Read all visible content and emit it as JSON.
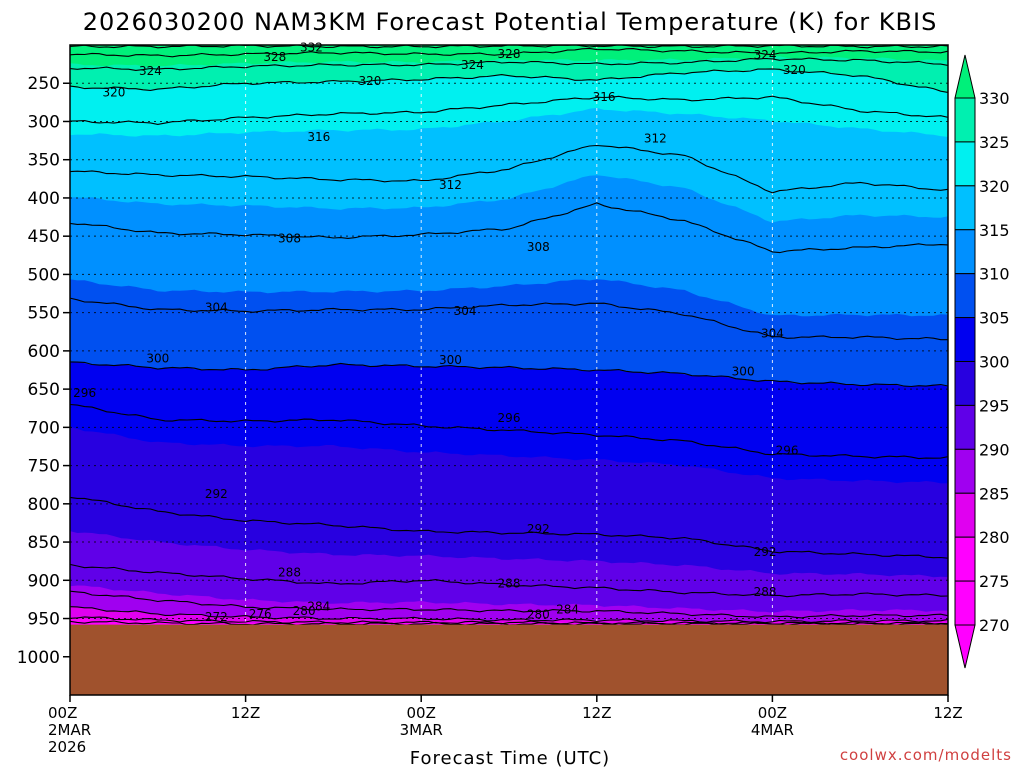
{
  "chart_data": {
    "type": "heatmap",
    "title": "2026030200 NAM3KM Forecast Potential Temperature (K) for KBIS",
    "xlabel": "Forecast Time (UTC)",
    "ylabel": "",
    "credit": "coolwx.com/modelts",
    "x_ticks": [
      {
        "label": "00Z",
        "sub1": "2MAR",
        "sub2": "2026",
        "hour": 0
      },
      {
        "label": "12Z",
        "sub1": "",
        "sub2": "",
        "hour": 12
      },
      {
        "label": "00Z",
        "sub1": "3MAR",
        "sub2": "",
        "hour": 24
      },
      {
        "label": "12Z",
        "sub1": "",
        "sub2": "",
        "hour": 36
      },
      {
        "label": "00Z",
        "sub1": "4MAR",
        "sub2": "",
        "hour": 48
      },
      {
        "label": "12Z",
        "sub1": "",
        "sub2": "",
        "hour": 60
      }
    ],
    "x_range_hours": [
      0,
      60
    ],
    "y_ticks": [
      "250",
      "300",
      "350",
      "400",
      "450",
      "500",
      "550",
      "600",
      "650",
      "700",
      "750",
      "800",
      "850",
      "900",
      "950",
      "1000"
    ],
    "y_range_hpa": [
      200,
      1050
    ],
    "surface_pressure_hpa": 958,
    "surface_color": "#a0522d",
    "colorbar": {
      "ticks": [
        "330",
        "325",
        "320",
        "315",
        "310",
        "305",
        "300",
        "295",
        "290",
        "285",
        "280",
        "275",
        "270"
      ],
      "bins": [
        {
          "range": [
            325,
            335
          ],
          "color": "#00f07a"
        },
        {
          "range": [
            320,
            325
          ],
          "color": "#00f0b0"
        },
        {
          "range": [
            315,
            320
          ],
          "color": "#00f0f0"
        },
        {
          "range": [
            310,
            315
          ],
          "color": "#00c0ff"
        },
        {
          "range": [
            305,
            310
          ],
          "color": "#0090ff"
        },
        {
          "range": [
            300,
            305
          ],
          "color": "#0050f0"
        },
        {
          "range": [
            295,
            300
          ],
          "color": "#0000f0"
        },
        {
          "range": [
            290,
            295
          ],
          "color": "#2800e0"
        },
        {
          "range": [
            285,
            290
          ],
          "color": "#6000e8"
        },
        {
          "range": [
            280,
            285
          ],
          "color": "#a000f0"
        },
        {
          "range": [
            275,
            280
          ],
          "color": "#e000f0"
        },
        {
          "range": [
            265,
            275
          ],
          "color": "#ff00ff"
        }
      ]
    },
    "isentrope_levels": [
      272,
      276,
      280,
      284,
      288,
      292,
      296,
      300,
      304,
      308,
      312,
      316,
      320,
      324,
      328,
      332
    ],
    "sample_hours": [
      0,
      6,
      12,
      18,
      24,
      30,
      36,
      42,
      48,
      54,
      60
    ],
    "isentrope_pressure_profiles": {
      "332": [
        202,
        202,
        201,
        202,
        202,
        201,
        201,
        202,
        201,
        202,
        202
      ],
      "328": [
        212,
        214,
        212,
        210,
        212,
        212,
        205,
        208,
        211,
        208,
        209
      ],
      "324": [
        230,
        232,
        228,
        226,
        226,
        222,
        225,
        223,
        218,
        220,
        225
      ],
      "320": [
        255,
        258,
        250,
        248,
        245,
        240,
        246,
        236,
        232,
        240,
        262
      ],
      "316": [
        300,
        302,
        295,
        290,
        288,
        278,
        268,
        272,
        268,
        286,
        295
      ],
      "312": [
        365,
        370,
        372,
        376,
        378,
        362,
        330,
        345,
        392,
        380,
        390
      ],
      "308": [
        432,
        446,
        448,
        452,
        448,
        440,
        408,
        430,
        470,
        465,
        460
      ],
      "304": [
        532,
        546,
        548,
        546,
        546,
        540,
        538,
        552,
        582,
        582,
        585
      ],
      "300": [
        615,
        622,
        625,
        618,
        620,
        622,
        625,
        630,
        640,
        644,
        646
      ],
      "296": [
        670,
        690,
        692,
        690,
        698,
        704,
        710,
        718,
        735,
        738,
        740
      ],
      "292": [
        790,
        810,
        822,
        828,
        836,
        838,
        840,
        845,
        862,
        866,
        870
      ],
      "288": [
        880,
        890,
        898,
        905,
        900,
        906,
        910,
        916,
        920,
        918,
        920
      ],
      "284": [
        915,
        926,
        935,
        938,
        938,
        940,
        940,
        944,
        948,
        946,
        946
      ],
      "280": [
        935,
        944,
        948,
        950,
        950,
        952,
        952,
        953,
        954,
        953,
        953
      ],
      "276": [
        948,
        952,
        954,
        955,
        955,
        955,
        956,
        956,
        956,
        956,
        956
      ],
      "272": [
        954,
        956,
        957,
        957,
        957,
        957,
        957,
        957,
        957,
        957,
        957
      ]
    },
    "contour_labels": [
      {
        "text": "332",
        "hour": 16.5,
        "p": 203
      },
      {
        "text": "328",
        "hour": 14,
        "p": 216
      },
      {
        "text": "328",
        "hour": 30,
        "p": 212
      },
      {
        "text": "324",
        "hour": 5.5,
        "p": 234
      },
      {
        "text": "324",
        "hour": 27.5,
        "p": 226
      },
      {
        "text": "324",
        "hour": 47.5,
        "p": 213
      },
      {
        "text": "320",
        "hour": 3,
        "p": 262
      },
      {
        "text": "320",
        "hour": 20.5,
        "p": 247
      },
      {
        "text": "320",
        "hour": 49.5,
        "p": 233
      },
      {
        "text": "316",
        "hour": 36.5,
        "p": 268
      },
      {
        "text": "316",
        "hour": 17,
        "p": 320
      },
      {
        "text": "312",
        "hour": 40,
        "p": 322
      },
      {
        "text": "312",
        "hour": 26,
        "p": 383
      },
      {
        "text": "308",
        "hour": 15,
        "p": 453
      },
      {
        "text": "308",
        "hour": 32,
        "p": 464
      },
      {
        "text": "304",
        "hour": 10,
        "p": 543
      },
      {
        "text": "304",
        "hour": 27,
        "p": 548
      },
      {
        "text": "304",
        "hour": 48,
        "p": 577
      },
      {
        "text": "300",
        "hour": 6,
        "p": 610
      },
      {
        "text": "300",
        "hour": 26,
        "p": 612
      },
      {
        "text": "300",
        "hour": 46,
        "p": 627
      },
      {
        "text": "296",
        "hour": 1,
        "p": 655
      },
      {
        "text": "296",
        "hour": 30,
        "p": 688
      },
      {
        "text": "296",
        "hour": 49,
        "p": 730
      },
      {
        "text": "292",
        "hour": 10,
        "p": 787
      },
      {
        "text": "292",
        "hour": 32,
        "p": 833
      },
      {
        "text": "292",
        "hour": 47.5,
        "p": 863
      },
      {
        "text": "288",
        "hour": 15,
        "p": 890
      },
      {
        "text": "288",
        "hour": 30,
        "p": 904
      },
      {
        "text": "288",
        "hour": 47.5,
        "p": 915
      },
      {
        "text": "284",
        "hour": 17,
        "p": 934
      },
      {
        "text": "284",
        "hour": 34,
        "p": 938
      },
      {
        "text": "280",
        "hour": 16,
        "p": 940
      },
      {
        "text": "280",
        "hour": 32,
        "p": 945
      },
      {
        "text": "276",
        "hour": 13,
        "p": 944
      },
      {
        "text": "272",
        "hour": 10,
        "p": 948
      }
    ]
  }
}
